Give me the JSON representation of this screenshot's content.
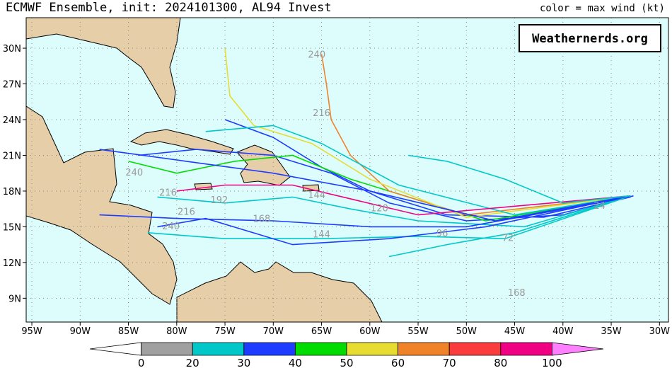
{
  "header": {
    "title": "ECMWF Ensemble, init: 2024101300, AL94 Invest",
    "legend_note": "color = max wind (kt)",
    "watermark": "Weathernerds.org"
  },
  "map": {
    "xlim": [
      -95.59,
      -29.07
    ],
    "ylim": [
      7.0,
      32.56
    ],
    "xticks": [
      {
        "value": -95,
        "label": "95W"
      },
      {
        "value": -90,
        "label": "90W"
      },
      {
        "value": -85,
        "label": "85W"
      },
      {
        "value": -80,
        "label": "80W"
      },
      {
        "value": -75,
        "label": "75W"
      },
      {
        "value": -70,
        "label": "70W"
      },
      {
        "value": -65,
        "label": "65W"
      },
      {
        "value": -60,
        "label": "60W"
      },
      {
        "value": -55,
        "label": "55W"
      },
      {
        "value": -50,
        "label": "50W"
      },
      {
        "value": -45,
        "label": "45W"
      },
      {
        "value": -40,
        "label": "40W"
      },
      {
        "value": -35,
        "label": "35W"
      },
      {
        "value": -30,
        "label": "30W"
      }
    ],
    "yticks": [
      {
        "value": 9,
        "label": "9N"
      },
      {
        "value": 12,
        "label": "12N"
      },
      {
        "value": 15,
        "label": "15N"
      },
      {
        "value": 18,
        "label": "18N"
      },
      {
        "value": 21,
        "label": "21N"
      },
      {
        "value": 24,
        "label": "24N"
      },
      {
        "value": 27,
        "label": "27N"
      },
      {
        "value": 30,
        "label": "30N"
      }
    ],
    "grid": true,
    "tracks": [
      {
        "color": "#1e3cff",
        "lon": [
          -32.7,
          -40,
          -50,
          -58,
          -64,
          -70,
          -78,
          -84
        ],
        "lat": [
          17.6,
          16,
          15.5,
          17,
          19.5,
          21,
          21.5,
          21
        ]
      },
      {
        "color": "#1e3cff",
        "lon": [
          -33,
          -42,
          -52,
          -60,
          -65,
          -70,
          -75
        ],
        "lat": [
          17.5,
          15.8,
          16,
          18,
          20,
          22.5,
          24
        ]
      },
      {
        "color": "#00c8c8",
        "lon": [
          -33,
          -44,
          -55,
          -62,
          -68,
          -75,
          -82
        ],
        "lat": [
          17.6,
          15,
          15.5,
          16.5,
          17.5,
          17,
          17.5
        ]
      },
      {
        "color": "#00c8c8",
        "lon": [
          -33,
          -45,
          -52,
          -58
        ],
        "lat": [
          17.6,
          14.5,
          13.5,
          12.5
        ]
      },
      {
        "color": "#1e3cff",
        "lon": [
          -33,
          -50,
          -60,
          -70,
          -80,
          -88
        ],
        "lat": [
          17.5,
          15,
          15,
          15.5,
          15.7,
          16
        ]
      },
      {
        "color": "#00dc00",
        "lon": [
          -33,
          -48,
          -62,
          -68,
          -74,
          -80,
          -85
        ],
        "lat": [
          17.6,
          15.5,
          19,
          21,
          20.5,
          19.5,
          20.5
        ]
      },
      {
        "color": "#f08228",
        "lon": [
          -33,
          -50,
          -58,
          -62,
          -64,
          -64.5,
          -65
        ],
        "lat": [
          17.6,
          16,
          18,
          21,
          24,
          27,
          29.5
        ]
      },
      {
        "color": "#e6dc32",
        "lon": [
          -33,
          -50,
          -60,
          -66,
          -72,
          -74.5,
          -75
        ],
        "lat": [
          17.6,
          15.8,
          19,
          22,
          23.5,
          26,
          30
        ]
      },
      {
        "color": "#00c8c8",
        "lon": [
          -33,
          -45,
          -57,
          -65,
          -70,
          -77
        ],
        "lat": [
          17.6,
          16,
          18.5,
          22,
          23.5,
          23
        ]
      },
      {
        "color": "#00c8c8",
        "lon": [
          -33,
          -46,
          -55,
          -65,
          -75,
          -83
        ],
        "lat": [
          17.6,
          14,
          14.2,
          14,
          14,
          14.5
        ]
      },
      {
        "color": "#1e3cff",
        "lon": [
          -33,
          -48,
          -58,
          -68,
          -77,
          -82
        ],
        "lat": [
          17.6,
          15,
          14,
          13.5,
          15.7,
          15
        ]
      },
      {
        "color": "#f00082",
        "lon": [
          -33,
          -55,
          -68,
          -75,
          -80
        ],
        "lat": [
          17.6,
          16,
          18.5,
          18.5,
          18
        ]
      },
      {
        "color": "#1e3cff",
        "lon": [
          -33,
          -47,
          -60,
          -70,
          -79,
          -88
        ],
        "lat": [
          17.6,
          15.5,
          18,
          19.5,
          20.5,
          21.5
        ]
      },
      {
        "color": "#00c8c8",
        "lon": [
          -33,
          -40,
          -46,
          -52,
          -56
        ],
        "lat": [
          17.6,
          17,
          19,
          20.5,
          21
        ]
      }
    ],
    "hour_labels": [
      {
        "hour": 240,
        "lon": -65.5,
        "lat": 29.2
      },
      {
        "hour": 216,
        "lon": -65,
        "lat": 24.3
      },
      {
        "hour": 240,
        "lon": -84.4,
        "lat": 19.3
      },
      {
        "hour": 216,
        "lon": -80.9,
        "lat": 17.6
      },
      {
        "hour": 192,
        "lon": -75.6,
        "lat": 17.0
      },
      {
        "hour": 168,
        "lon": -71.2,
        "lat": 15.4
      },
      {
        "hour": 144,
        "lon": -65.5,
        "lat": 17.4
      },
      {
        "hour": 144,
        "lon": -65,
        "lat": 14.1
      },
      {
        "hour": 120,
        "lon": -59,
        "lat": 16.3
      },
      {
        "hour": 96,
        "lon": -52.5,
        "lat": 14.2
      },
      {
        "hour": 72,
        "lon": -45.7,
        "lat": 13.8
      },
      {
        "hour": 24,
        "lon": -36.2,
        "lat": 16.5
      },
      {
        "hour": 168,
        "lon": -44.8,
        "lat": 9.2
      },
      {
        "hour": 240,
        "lon": -80.6,
        "lat": 14.8
      },
      {
        "hour": 216,
        "lon": -79.0,
        "lat": 16.0
      }
    ]
  },
  "colorbar": {
    "levels": [
      0,
      20,
      30,
      40,
      50,
      60,
      70,
      80,
      100
    ],
    "colors": [
      "#ffffff",
      "#a0a0a0",
      "#00c8c8",
      "#1e3cff",
      "#00dc00",
      "#e6dc32",
      "#f08228",
      "#fa3c3c",
      "#f00082",
      "#ff80ff"
    ]
  }
}
